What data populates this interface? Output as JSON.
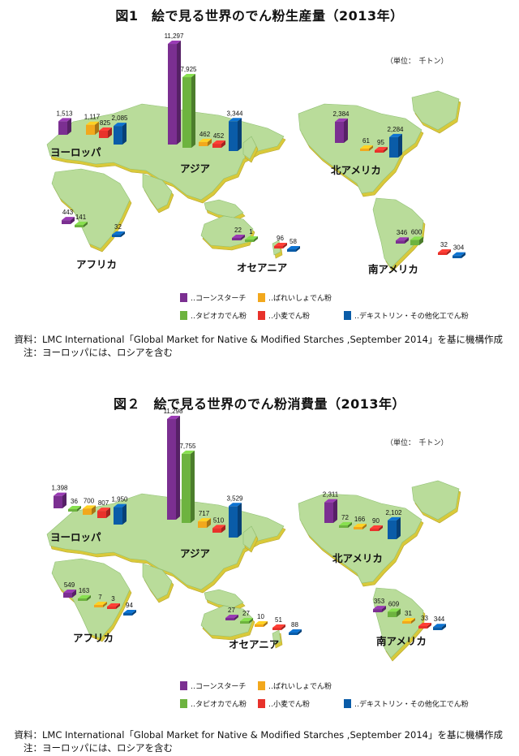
{
  "figure1": {
    "title": "図1　絵で見る世界のでん粉生産量（2013年）",
    "unit": "（単位：　千トン）",
    "source_label": "資料：",
    "source_text": "LMC International「Global Market for Native & Modified Starches ,September 2014」を基に機構作成",
    "note_label": "注：",
    "note_text": "ヨーロッパには、ロシアを含む"
  },
  "figure2": {
    "title": "図２　絵で見る世界のでん粉消費量（2013年）",
    "unit": "（単位：　千トン）",
    "source_label": "資料：",
    "source_text": "LMC International「Global Market for Native & Modified Starches ,September 2014」を基に機構作成",
    "note_label": "注：",
    "note_text": "ヨーロッパには、ロシアを含む"
  },
  "colors": {
    "corn": "#7B2F91",
    "tapioca": "#6DB33F",
    "potato": "#F2A81D",
    "wheat": "#E8322B",
    "dextrin": "#0A5CA8",
    "land": "#B9DC9A",
    "land_edge": "#D9C93A"
  },
  "chart_data": [
    {
      "type": "bar",
      "title": "図1　絵で見る世界のでん粉生産量（2013年）",
      "unit": "千トン",
      "series_names": [
        "コーンスターチ",
        "ばれいしょでん粉",
        "タピオカでん粉",
        "小麦でん粉",
        "デキストリン・その他化工でん粉"
      ],
      "regions": [
        {
          "name": "ヨーロッパ",
          "values": {
            "corn": 1513,
            "potato": 1117,
            "wheat": 825,
            "dextrin": 2085
          }
        },
        {
          "name": "アジア",
          "values": {
            "corn": 11297,
            "tapioca": 7925,
            "potato": 462,
            "wheat": 452,
            "dextrin": 3344
          }
        },
        {
          "name": "北アメリカ",
          "values": {
            "corn": 2384,
            "potato": 61,
            "wheat": 95,
            "dextrin": 2284
          }
        },
        {
          "name": "アフリカ",
          "values": {
            "corn": 443,
            "tapioca": 141,
            "dextrin": 32
          }
        },
        {
          "name": "オセアニア",
          "values": {
            "corn": 22,
            "tapioca": 1,
            "wheat": 96,
            "dextrin": 58
          }
        },
        {
          "name": "南アメリカ",
          "values": {
            "corn": 346,
            "tapioca": 600,
            "wheat": 32,
            "dextrin": 304
          }
        }
      ]
    },
    {
      "type": "bar",
      "title": "図２　絵で見る世界のでん粉消費量（2013年）",
      "unit": "千トン",
      "series_names": [
        "コーンスターチ",
        "ばれいしょでん粉",
        "タピオカでん粉",
        "小麦でん粉",
        "デキストリン・その他化工でん粉"
      ],
      "regions": [
        {
          "name": "ヨーロッパ",
          "values": {
            "corn": 1398,
            "tapioca": 36,
            "potato": 700,
            "wheat": 807,
            "dextrin": 1950
          }
        },
        {
          "name": "アジア",
          "values": {
            "corn": 11298,
            "tapioca": 7755,
            "potato": 717,
            "wheat": 510,
            "dextrin": 3529
          }
        },
        {
          "name": "北アメリカ",
          "values": {
            "corn": 2311,
            "tapioca": 72,
            "potato": 166,
            "wheat": 90,
            "dextrin": 2102
          }
        },
        {
          "name": "アフリカ",
          "values": {
            "corn": 549,
            "tapioca": 163,
            "potato": 7,
            "wheat": 3,
            "dextrin": 94
          }
        },
        {
          "name": "オセアニア",
          "values": {
            "corn": 27,
            "tapioca": 27,
            "potato": 10,
            "wheat": 51,
            "dextrin": 88
          }
        },
        {
          "name": "南アメリカ",
          "values": {
            "corn": 353,
            "tapioca": 609,
            "potato": 31,
            "wheat": 33,
            "dextrin": 344
          }
        }
      ]
    }
  ],
  "legend": [
    {
      "key": "corn",
      "label": "‥コーンスターチ"
    },
    {
      "key": "potato",
      "label": "‥ばれいしょでん粉"
    },
    {
      "key": "tapioca",
      "label": "‥タピオカでん粉"
    },
    {
      "key": "wheat",
      "label": "‥小麦でん粉"
    },
    {
      "key": "dextrin",
      "label": "‥デキストリン・その他化工でん粉"
    }
  ]
}
